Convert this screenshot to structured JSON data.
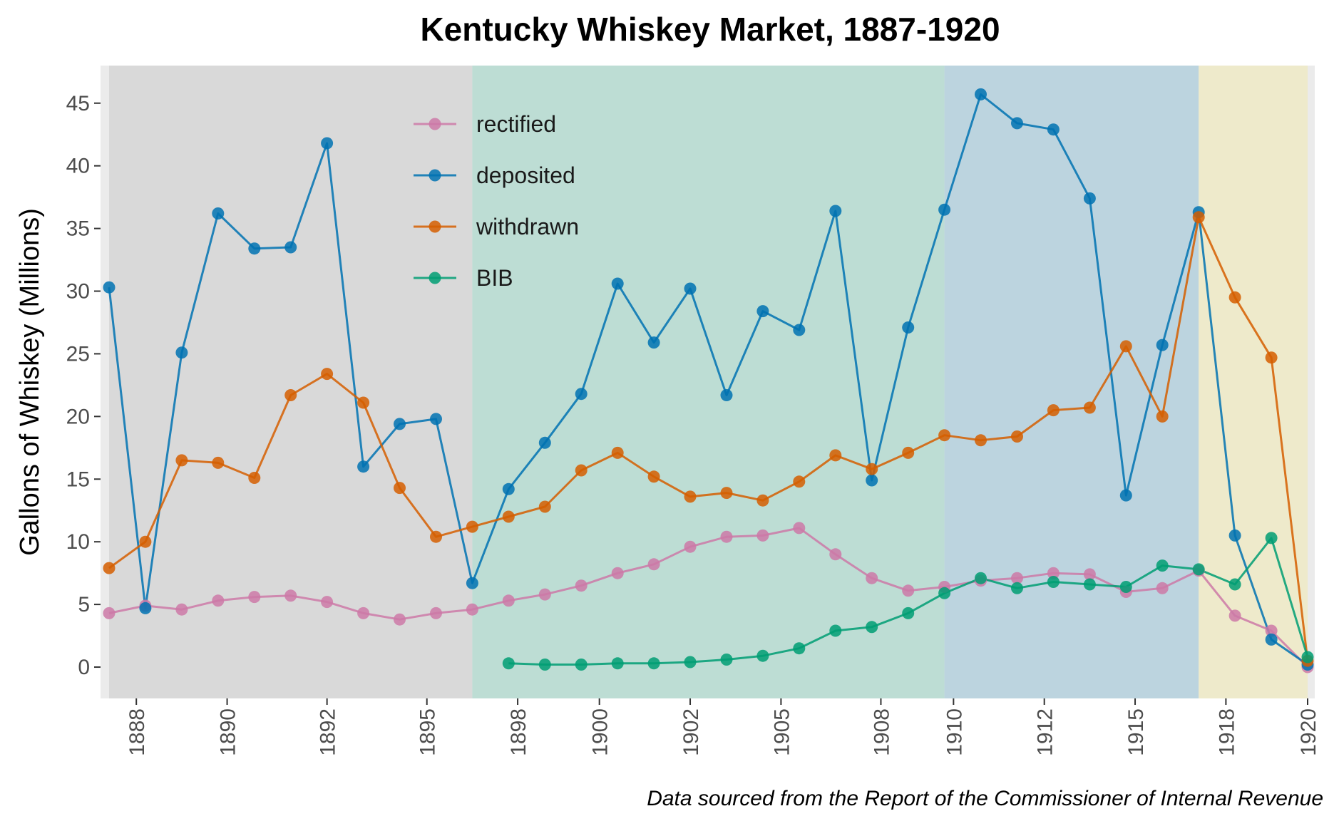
{
  "chart_data": {
    "type": "line",
    "title": "Kentucky Whiskey Market, 1887-1920",
    "ylabel": "Gallons of Whiskey (Millions)",
    "xlabel": "",
    "caption": "Data sourced from the Report of the Commissioner of Internal Revenue",
    "x_range": [
      1887,
      1920
    ],
    "ylim": [
      -2.5,
      48
    ],
    "y_ticks": [
      0,
      5,
      10,
      15,
      20,
      25,
      30,
      35,
      40,
      45
    ],
    "x_tick_positions": [
      1887.75,
      1890.25,
      1893.0,
      1895.75,
      1898.25,
      1900.5,
      1903.0,
      1905.5,
      1908.25,
      1910.25,
      1912.75,
      1915.25,
      1917.75,
      1920.0
    ],
    "x_tick_labels": [
      "1888",
      "1890",
      "1892",
      "1895",
      "1898",
      "1900",
      "1902",
      "1905",
      "1908",
      "1910",
      "1912",
      "1915",
      "1918",
      "1920"
    ],
    "background_color": "#ebebeb",
    "eras": [
      {
        "start": 1887.0,
        "end": 1897.0,
        "color": "#d9d9d9"
      },
      {
        "start": 1897.0,
        "end": 1910.0,
        "color": "#bdddd4"
      },
      {
        "start": 1910.0,
        "end": 1917.0,
        "color": "#bcd4df"
      },
      {
        "start": 1917.0,
        "end": 1920.0,
        "color": "#eeeacb"
      }
    ],
    "legend_position": "top-center",
    "x": [
      1887,
      1888,
      1889,
      1890,
      1891,
      1892,
      1893,
      1894,
      1895,
      1896,
      1897,
      1898,
      1899,
      1900,
      1901,
      1902,
      1903,
      1904,
      1905,
      1906,
      1907,
      1908,
      1909,
      1910,
      1911,
      1912,
      1913,
      1914,
      1915,
      1916,
      1917,
      1918,
      1919,
      1920
    ],
    "series": [
      {
        "name": "rectified",
        "color": "#cc79a7",
        "values": [
          4.3,
          4.9,
          4.6,
          5.3,
          5.6,
          5.7,
          5.2,
          4.3,
          3.8,
          4.3,
          4.6,
          5.3,
          5.8,
          6.5,
          7.5,
          8.2,
          9.6,
          10.4,
          10.5,
          11.1,
          9.0,
          7.1,
          6.1,
          6.4,
          6.9,
          7.1,
          7.5,
          7.4,
          6.0,
          6.3,
          7.7,
          4.1,
          2.9,
          0.0
        ]
      },
      {
        "name": "deposited",
        "color": "#0072b2",
        "values": [
          30.3,
          4.7,
          25.1,
          36.2,
          33.4,
          33.5,
          41.8,
          16.0,
          19.4,
          19.8,
          6.7,
          14.2,
          17.9,
          21.8,
          30.6,
          25.9,
          30.2,
          21.7,
          28.4,
          26.9,
          36.4,
          14.9,
          27.1,
          36.5,
          45.7,
          43.4,
          42.9,
          37.4,
          13.7,
          25.7,
          36.3,
          10.5,
          2.2,
          0.2
        ]
      },
      {
        "name": "withdrawn",
        "color": "#d55e00",
        "values": [
          7.9,
          10.0,
          16.5,
          16.3,
          15.1,
          21.7,
          23.4,
          21.1,
          14.3,
          10.4,
          11.2,
          12.0,
          12.8,
          15.7,
          17.1,
          15.2,
          13.6,
          13.9,
          13.3,
          14.8,
          16.9,
          15.8,
          17.1,
          18.5,
          18.1,
          18.4,
          20.5,
          20.7,
          25.6,
          20.0,
          35.9,
          29.5,
          24.7,
          0.5
        ]
      },
      {
        "name": "BIB",
        "color": "#009e73",
        "values": [
          null,
          null,
          null,
          null,
          null,
          null,
          null,
          null,
          null,
          null,
          null,
          0.3,
          0.2,
          0.2,
          0.3,
          0.3,
          0.4,
          0.6,
          0.9,
          1.5,
          2.9,
          3.2,
          4.3,
          5.9,
          7.1,
          6.3,
          6.8,
          6.6,
          6.4,
          8.1,
          7.8,
          6.6,
          10.3,
          0.8
        ]
      }
    ]
  }
}
